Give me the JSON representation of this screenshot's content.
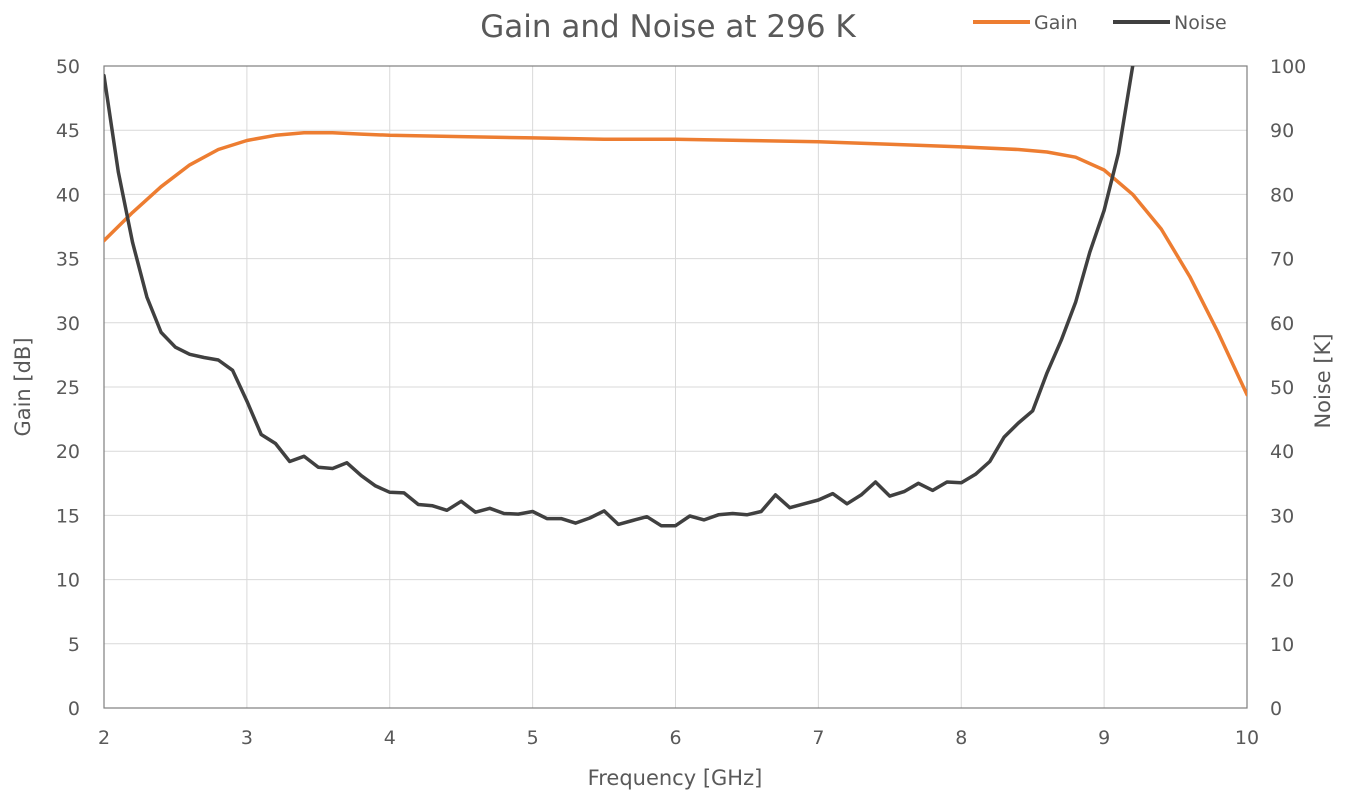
{
  "chart_data": {
    "type": "line",
    "title": "Gain and Noise at 296 K",
    "xlabel": "Frequency [GHz]",
    "ylabel": "Gain [dB]",
    "y2label": "Noise [K]",
    "xlim": [
      2,
      10
    ],
    "ylim": [
      0,
      50
    ],
    "y2lim": [
      0,
      100
    ],
    "x_ticks": [
      "2",
      "3",
      "4",
      "5",
      "6",
      "7",
      "8",
      "9",
      "10"
    ],
    "y_ticks": [
      "0",
      "5",
      "10",
      "15",
      "20",
      "25",
      "30",
      "35",
      "40",
      "45",
      "50"
    ],
    "y2_ticks": [
      "0",
      "10",
      "20",
      "30",
      "40",
      "50",
      "60",
      "70",
      "80",
      "90",
      "100"
    ],
    "grid": true,
    "legend_position": "top-right",
    "series": [
      {
        "name": "Gain",
        "axis": "left",
        "color": "#ed7d31",
        "x": [
          2.0,
          2.2,
          2.4,
          2.6,
          2.8,
          3.0,
          3.2,
          3.4,
          3.6,
          3.8,
          4.0,
          4.5,
          5.0,
          5.5,
          6.0,
          6.5,
          7.0,
          7.5,
          8.0,
          8.4,
          8.6,
          8.8,
          9.0,
          9.2,
          9.4,
          9.6,
          9.8,
          10.0
        ],
        "y": [
          36.4,
          38.6,
          40.6,
          42.3,
          43.5,
          44.2,
          44.6,
          44.8,
          44.8,
          44.7,
          44.6,
          44.5,
          44.4,
          44.3,
          44.3,
          44.2,
          44.1,
          43.9,
          43.7,
          43.5,
          43.3,
          42.9,
          41.9,
          40.0,
          37.3,
          33.6,
          29.2,
          24.4
        ]
      },
      {
        "name": "Noise",
        "axis": "right",
        "color": "#404040",
        "x": [
          2.0,
          2.1,
          2.2,
          2.3,
          2.4,
          2.5,
          2.6,
          2.7,
          2.8,
          2.9,
          3.0,
          3.1,
          3.2,
          3.3,
          3.4,
          3.5,
          3.6,
          3.7,
          3.8,
          3.9,
          4.0,
          4.1,
          4.2,
          4.3,
          4.4,
          4.5,
          4.6,
          4.7,
          4.8,
          4.9,
          5.0,
          5.1,
          5.2,
          5.3,
          5.4,
          5.5,
          5.6,
          5.7,
          5.8,
          5.9,
          6.0,
          6.1,
          6.2,
          6.3,
          6.4,
          6.5,
          6.6,
          6.7,
          6.8,
          6.9,
          7.0,
          7.1,
          7.2,
          7.3,
          7.4,
          7.5,
          7.6,
          7.7,
          7.8,
          7.9,
          8.0,
          8.1,
          8.2,
          8.3,
          8.4,
          8.5,
          8.6,
          8.7,
          8.8,
          8.9,
          9.0,
          9.1,
          9.2
        ],
        "y": [
          98.5,
          83.5,
          72.5,
          64,
          58.5,
          56.2,
          55.1,
          54.6,
          54.2,
          52.6,
          47.8,
          42.6,
          41.2,
          38.4,
          39.2,
          37.5,
          37.3,
          38.2,
          36.2,
          34.6,
          33.6,
          33.5,
          31.7,
          31.5,
          30.8,
          32.2,
          30.5,
          31.1,
          30.3,
          30.2,
          30.6,
          29.5,
          29.5,
          28.8,
          29.6,
          30.7,
          28.6,
          29.2,
          29.8,
          28.4,
          28.4,
          29.9,
          29.3,
          30.1,
          30.3,
          30.1,
          30.6,
          33.2,
          31.2,
          31.8,
          32.4,
          33.4,
          31.8,
          33.2,
          35.2,
          33,
          33.7,
          35,
          33.9,
          35.2,
          35.1,
          36.4,
          38.4,
          42.2,
          44.4,
          46.3,
          52.2,
          57.3,
          63.2,
          71,
          77.5,
          86.4,
          100
        ]
      }
    ]
  }
}
